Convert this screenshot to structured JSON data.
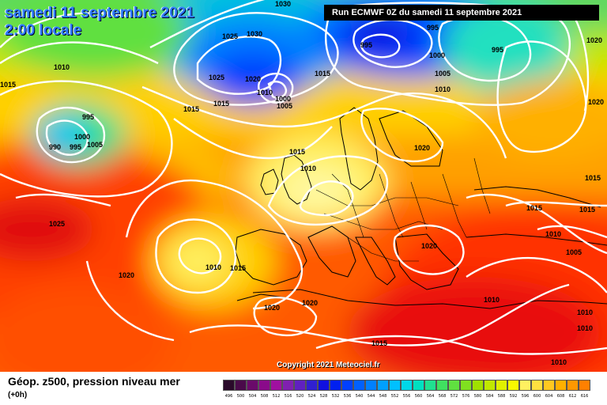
{
  "map": {
    "title_date": "samedi 11 septembre 2021",
    "title_time": "2:00 locale",
    "run_label": "Run ECMWF 0Z du samedi 11 septembre 2021",
    "copyright": "Copyright 2021 Meteociel.fr",
    "isobar_labels": [
      {
        "id": "1030-top",
        "text": "1030"
      },
      {
        "id": "1025-north",
        "text": "1025"
      },
      {
        "id": "1030-north",
        "text": "1030"
      },
      {
        "id": "1025-iceland",
        "text": "1025"
      },
      {
        "id": "1020-iceland",
        "text": "1020"
      },
      {
        "id": "1010-iceland",
        "text": "1010"
      },
      {
        "id": "1000-iceland",
        "text": "1000"
      },
      {
        "id": "1005-iceland",
        "text": "1005"
      },
      {
        "id": "1015-iceland",
        "text": "1015"
      },
      {
        "id": "1015-iceland-b",
        "text": "1015"
      },
      {
        "id": "1015-greenland",
        "text": "1015"
      },
      {
        "id": "1010-greenland",
        "text": "1010"
      },
      {
        "id": "995-w",
        "text": "995"
      },
      {
        "id": "1000-w",
        "text": "1000"
      },
      {
        "id": "1005-w",
        "text": "1005"
      },
      {
        "id": "990-w",
        "text": "990"
      },
      {
        "id": "995-w2",
        "text": "995"
      },
      {
        "id": "995-nord",
        "text": "995"
      },
      {
        "id": "995-ne",
        "text": "995"
      },
      {
        "id": "1000-nord",
        "text": "1000"
      },
      {
        "id": "1005-nord",
        "text": "1005"
      },
      {
        "id": "1010-nord",
        "text": "1010"
      },
      {
        "id": "995-east",
        "text": "995"
      },
      {
        "id": "1020-ne",
        "text": "1020"
      },
      {
        "id": "1020-right",
        "text": "1020"
      },
      {
        "id": "1015-uk",
        "text": "1015"
      },
      {
        "id": "1010-uk",
        "text": "1010"
      },
      {
        "id": "1020-russia",
        "text": "1020"
      },
      {
        "id": "1025-atl",
        "text": "1025"
      },
      {
        "id": "1020-atl",
        "text": "1020"
      },
      {
        "id": "1010-biscay",
        "text": "1010"
      },
      {
        "id": "1015-biscay",
        "text": "1015"
      },
      {
        "id": "1020-balkans",
        "text": "1020"
      },
      {
        "id": "1020-iberia",
        "text": "1020"
      },
      {
        "id": "1020-nafrica",
        "text": "1020"
      },
      {
        "id": "1015-east1",
        "text": "1015"
      },
      {
        "id": "1015-east2",
        "text": "1015"
      },
      {
        "id": "1015-east3",
        "text": "1015"
      },
      {
        "id": "1010-east1",
        "text": "1010"
      },
      {
        "id": "1005-east",
        "text": "1005"
      },
      {
        "id": "1010-turkey",
        "text": "1010"
      },
      {
        "id": "1010-se1",
        "text": "1010"
      },
      {
        "id": "1010-se2",
        "text": "1010"
      },
      {
        "id": "1015-sahara",
        "text": "1015"
      },
      {
        "id": "1010-libya",
        "text": "1010"
      },
      {
        "id": "1015-west",
        "text": "1015"
      }
    ]
  },
  "legend": {
    "title": "Géop. z500, pression niveau mer",
    "subtitle": "(+0h)",
    "colors": [
      "#2a0a2a",
      "#4a0a4a",
      "#6a0a6a",
      "#8a0a8a",
      "#a010a0",
      "#8020b0",
      "#6020c0",
      "#3020d0",
      "#1010e0",
      "#0020f0",
      "#0040ff",
      "#0060ff",
      "#0080ff",
      "#00a0ff",
      "#00c0ff",
      "#00d8e8",
      "#00e0c0",
      "#20e090",
      "#40e060",
      "#60e040",
      "#80e020",
      "#a0e000",
      "#c0e800",
      "#e0f000",
      "#f8f800",
      "#fff060",
      "#ffe040",
      "#ffc820",
      "#ffb000",
      "#ff9800",
      "#ff8000",
      "#ff6800",
      "#ff5000",
      "#ff3800",
      "#ff2000",
      "#f01010",
      "#d00808",
      "#b00000",
      "#900000",
      "#700000",
      "#500000",
      "#300000",
      "#100000"
    ],
    "ticks": [
      "496",
      "500",
      "504",
      "508",
      "512",
      "516",
      "520",
      "524",
      "528",
      "532",
      "536",
      "540",
      "544",
      "548",
      "552",
      "556",
      "560",
      "564",
      "568",
      "572",
      "576",
      "580",
      "584",
      "588",
      "592",
      "596",
      "600",
      "604",
      "608",
      "612",
      "616"
    ]
  }
}
